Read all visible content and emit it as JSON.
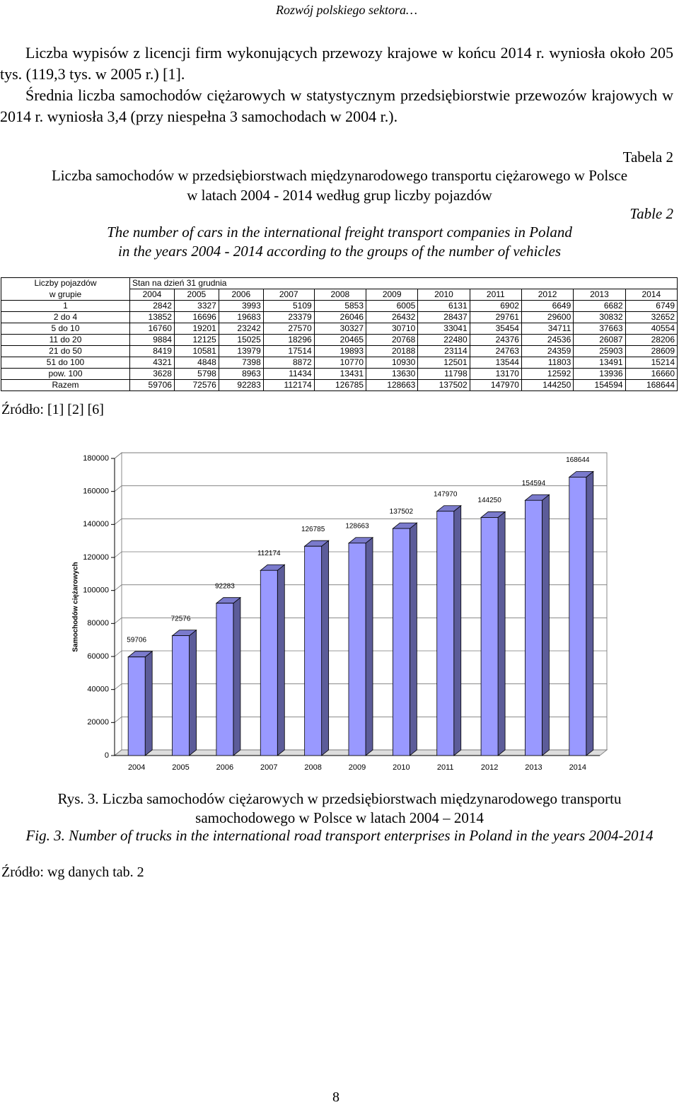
{
  "header": {
    "running_title": "Rozwój polskiego sektora…"
  },
  "paragraphs": [
    "Liczba wypisów z licencji firm wykonujących przewozy krajowe w końcu 2014 r. wyniosła około 205 tys. (119,3 tys. w 2005 r.) [1].",
    "Średnia liczba samochodów ciężarowych w statystycznym przedsiębiorstwie przewozów krajowych w 2014 r. wyniosła 3,4 (przy niespełna 3 samochodach w 2004 r.)."
  ],
  "table_caption": {
    "label_pl": "Tabela 2",
    "title_pl": [
      "Liczba samochodów w przedsiębiorstwach międzynarodowego transportu ciężarowego w Polsce",
      "w latach 2004 - 2014 według grup liczby pojazdów"
    ],
    "label_en": "Table 2",
    "title_en": [
      "The number of cars in the international freight transport companies in Poland",
      "in the years 2004 - 2014 according to the groups of the number of vehicles"
    ]
  },
  "table": {
    "group_header": [
      "Liczby pojazdów",
      "w grupie"
    ],
    "date_header": "Stan na dzień 31 grudnia",
    "years": [
      "2004",
      "2005",
      "2006",
      "2007",
      "2008",
      "2009",
      "2010",
      "2011",
      "2012",
      "2013",
      "2014"
    ],
    "rows": [
      [
        "1",
        2842,
        3327,
        3993,
        5109,
        5853,
        6005,
        6131,
        6902,
        6649,
        6682,
        6749
      ],
      [
        "2 do 4",
        13852,
        16696,
        19683,
        23379,
        26046,
        26432,
        28437,
        29761,
        29600,
        30832,
        32652
      ],
      [
        "5 do 10",
        16760,
        19201,
        23242,
        27570,
        30327,
        30710,
        33041,
        35454,
        34711,
        37663,
        40554
      ],
      [
        "11 do 20",
        9884,
        12125,
        15025,
        18296,
        20465,
        20768,
        22480,
        24376,
        24536,
        26087,
        28206
      ],
      [
        "21 do 50",
        8419,
        10581,
        13979,
        17514,
        19893,
        20188,
        23114,
        24763,
        24359,
        25903,
        28609
      ],
      [
        "51 do 100",
        4321,
        4848,
        7398,
        8872,
        10770,
        10930,
        12501,
        13544,
        11803,
        13491,
        15214
      ],
      [
        "pow. 100",
        3628,
        5798,
        8963,
        11434,
        13431,
        13630,
        11798,
        13170,
        12592,
        13936,
        16660
      ],
      [
        "Razem",
        59706,
        72576,
        92283,
        112174,
        126785,
        128663,
        137502,
        147970,
        144250,
        154594,
        168644
      ]
    ],
    "source": "Źródło: [1] [2] [6]"
  },
  "chart_data": {
    "type": "bar3d",
    "y_label": "Samochodów ciężarowych",
    "categories": [
      "2004",
      "2005",
      "2006",
      "2007",
      "2008",
      "2009",
      "2010",
      "2011",
      "2012",
      "2013",
      "2014"
    ],
    "values": [
      59706,
      72576,
      92283,
      112174,
      126785,
      128663,
      137502,
      147970,
      144250,
      154594,
      168644
    ],
    "color": "#9999ff",
    "ylim": [
      0,
      180000
    ],
    "yticks": [
      0,
      20000,
      40000,
      60000,
      80000,
      100000,
      120000,
      140000,
      160000,
      180000
    ],
    "grid": true
  },
  "figure_caption": {
    "pl": "Rys. 3. Liczba samochodów ciężarowych w przedsiębiorstwach międzynarodowego transportu samochodowego w Polsce w latach 2004 – 2014",
    "en": "Fig. 3. Number of trucks in the international road transport enterprises in Poland in the years 2004-2014",
    "source": "Źródło: wg danych tab. 2"
  },
  "page_number": "8"
}
